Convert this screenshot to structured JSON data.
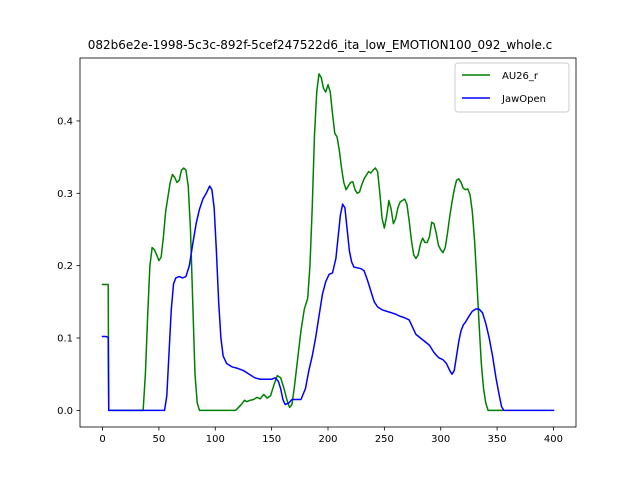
{
  "chart_data": {
    "type": "line",
    "title": "082b6e2e-1998-5c3c-892f-5cef247522d6_ita_low_EMOTION100_092_whole.c",
    "xlabel": "",
    "ylabel": "",
    "xlim": [
      -20,
      420
    ],
    "ylim": [
      -0.023,
      0.487
    ],
    "xticks": [
      0,
      50,
      100,
      150,
      200,
      250,
      300,
      350,
      400
    ],
    "yticks": [
      0.0,
      0.1,
      0.2,
      0.3,
      0.4
    ],
    "xtick_labels": [
      "0",
      "50",
      "100",
      "150",
      "200",
      "250",
      "300",
      "350",
      "400"
    ],
    "ytick_labels": [
      "0.0",
      "0.1",
      "0.2",
      "0.3",
      "0.4"
    ],
    "grid": false,
    "legend_position": "top-right",
    "series": [
      {
        "name": "AU26_r",
        "color": "#008000",
        "points": [
          [
            0,
            0.174
          ],
          [
            3,
            0.174
          ],
          [
            5,
            0.174
          ],
          [
            5.5,
            0.0
          ],
          [
            10,
            0.0
          ],
          [
            20,
            0.0
          ],
          [
            30,
            0.0
          ],
          [
            36,
            0.0
          ],
          [
            38,
            0.05
          ],
          [
            40,
            0.13
          ],
          [
            42,
            0.2
          ],
          [
            44,
            0.225
          ],
          [
            46,
            0.222
          ],
          [
            48,
            0.215
          ],
          [
            50,
            0.207
          ],
          [
            52,
            0.212
          ],
          [
            54,
            0.24
          ],
          [
            56,
            0.275
          ],
          [
            58,
            0.295
          ],
          [
            60,
            0.315
          ],
          [
            62,
            0.326
          ],
          [
            64,
            0.322
          ],
          [
            66,
            0.315
          ],
          [
            68,
            0.318
          ],
          [
            70,
            0.332
          ],
          [
            72,
            0.335
          ],
          [
            74,
            0.332
          ],
          [
            76,
            0.31
          ],
          [
            78,
            0.25
          ],
          [
            80,
            0.15
          ],
          [
            82,
            0.05
          ],
          [
            84,
            0.01
          ],
          [
            86,
            0.0
          ],
          [
            100,
            0.0
          ],
          [
            110,
            0.0
          ],
          [
            118,
            0.0
          ],
          [
            120,
            0.003
          ],
          [
            123,
            0.008
          ],
          [
            126,
            0.014
          ],
          [
            128,
            0.012
          ],
          [
            131,
            0.014
          ],
          [
            134,
            0.015
          ],
          [
            137,
            0.018
          ],
          [
            140,
            0.016
          ],
          [
            143,
            0.022
          ],
          [
            146,
            0.017
          ],
          [
            149,
            0.02
          ],
          [
            152,
            0.035
          ],
          [
            155,
            0.048
          ],
          [
            158,
            0.045
          ],
          [
            161,
            0.03
          ],
          [
            164,
            0.012
          ],
          [
            166,
            0.004
          ],
          [
            168,
            0.008
          ],
          [
            170,
            0.03
          ],
          [
            173,
            0.07
          ],
          [
            176,
            0.11
          ],
          [
            179,
            0.14
          ],
          [
            182,
            0.155
          ],
          [
            184,
            0.2
          ],
          [
            186,
            0.28
          ],
          [
            188,
            0.38
          ],
          [
            190,
            0.44
          ],
          [
            192,
            0.465
          ],
          [
            194,
            0.46
          ],
          [
            196,
            0.445
          ],
          [
            198,
            0.44
          ],
          [
            200,
            0.45
          ],
          [
            202,
            0.44
          ],
          [
            204,
            0.41
          ],
          [
            206,
            0.383
          ],
          [
            208,
            0.378
          ],
          [
            210,
            0.36
          ],
          [
            212,
            0.335
          ],
          [
            214,
            0.315
          ],
          [
            216,
            0.305
          ],
          [
            218,
            0.31
          ],
          [
            220,
            0.315
          ],
          [
            222,
            0.316
          ],
          [
            224,
            0.305
          ],
          [
            226,
            0.3
          ],
          [
            228,
            0.302
          ],
          [
            230,
            0.312
          ],
          [
            232,
            0.32
          ],
          [
            234,
            0.325
          ],
          [
            236,
            0.33
          ],
          [
            238,
            0.328
          ],
          [
            240,
            0.332
          ],
          [
            242,
            0.335
          ],
          [
            244,
            0.33
          ],
          [
            246,
            0.3
          ],
          [
            248,
            0.265
          ],
          [
            250,
            0.252
          ],
          [
            252,
            0.268
          ],
          [
            254,
            0.29
          ],
          [
            256,
            0.278
          ],
          [
            258,
            0.258
          ],
          [
            260,
            0.265
          ],
          [
            262,
            0.28
          ],
          [
            264,
            0.288
          ],
          [
            266,
            0.29
          ],
          [
            268,
            0.292
          ],
          [
            270,
            0.285
          ],
          [
            272,
            0.262
          ],
          [
            274,
            0.235
          ],
          [
            276,
            0.215
          ],
          [
            278,
            0.21
          ],
          [
            280,
            0.215
          ],
          [
            282,
            0.23
          ],
          [
            284,
            0.238
          ],
          [
            286,
            0.232
          ],
          [
            288,
            0.232
          ],
          [
            290,
            0.24
          ],
          [
            292,
            0.26
          ],
          [
            294,
            0.258
          ],
          [
            296,
            0.245
          ],
          [
            298,
            0.228
          ],
          [
            300,
            0.222
          ],
          [
            302,
            0.218
          ],
          [
            304,
            0.225
          ],
          [
            306,
            0.245
          ],
          [
            308,
            0.268
          ],
          [
            310,
            0.288
          ],
          [
            312,
            0.305
          ],
          [
            314,
            0.318
          ],
          [
            316,
            0.32
          ],
          [
            318,
            0.315
          ],
          [
            320,
            0.307
          ],
          [
            322,
            0.305
          ],
          [
            324,
            0.306
          ],
          [
            326,
            0.298
          ],
          [
            328,
            0.275
          ],
          [
            330,
            0.235
          ],
          [
            332,
            0.18
          ],
          [
            334,
            0.12
          ],
          [
            336,
            0.065
          ],
          [
            338,
            0.03
          ],
          [
            340,
            0.01
          ],
          [
            342,
            0.0
          ],
          [
            345,
            0.0
          ],
          [
            350,
            0.0
          ],
          [
            355,
            0.0
          ]
        ]
      },
      {
        "name": "JawOpen",
        "color": "#0000ff",
        "points": [
          [
            0,
            0.102
          ],
          [
            3,
            0.102
          ],
          [
            5,
            0.101
          ],
          [
            5.5,
            0.0
          ],
          [
            10,
            0.0
          ],
          [
            30,
            0.0
          ],
          [
            50,
            0.0
          ],
          [
            55,
            0.0
          ],
          [
            57,
            0.02
          ],
          [
            59,
            0.08
          ],
          [
            61,
            0.14
          ],
          [
            63,
            0.175
          ],
          [
            65,
            0.183
          ],
          [
            68,
            0.185
          ],
          [
            71,
            0.183
          ],
          [
            74,
            0.185
          ],
          [
            77,
            0.2
          ],
          [
            80,
            0.23
          ],
          [
            83,
            0.258
          ],
          [
            86,
            0.278
          ],
          [
            89,
            0.292
          ],
          [
            92,
            0.3
          ],
          [
            95,
            0.31
          ],
          [
            97,
            0.305
          ],
          [
            99,
            0.28
          ],
          [
            101,
            0.22
          ],
          [
            103,
            0.15
          ],
          [
            105,
            0.1
          ],
          [
            107,
            0.075
          ],
          [
            110,
            0.065
          ],
          [
            115,
            0.06
          ],
          [
            120,
            0.058
          ],
          [
            125,
            0.055
          ],
          [
            130,
            0.05
          ],
          [
            135,
            0.045
          ],
          [
            140,
            0.043
          ],
          [
            145,
            0.043
          ],
          [
            150,
            0.043
          ],
          [
            153,
            0.045
          ],
          [
            156,
            0.04
          ],
          [
            158,
            0.03
          ],
          [
            160,
            0.015
          ],
          [
            162,
            0.008
          ],
          [
            165,
            0.01
          ],
          [
            168,
            0.015
          ],
          [
            172,
            0.015
          ],
          [
            176,
            0.015
          ],
          [
            180,
            0.03
          ],
          [
            183,
            0.055
          ],
          [
            186,
            0.075
          ],
          [
            189,
            0.1
          ],
          [
            192,
            0.13
          ],
          [
            195,
            0.16
          ],
          [
            198,
            0.178
          ],
          [
            201,
            0.188
          ],
          [
            204,
            0.19
          ],
          [
            207,
            0.21
          ],
          [
            209,
            0.24
          ],
          [
            211,
            0.27
          ],
          [
            213,
            0.285
          ],
          [
            215,
            0.28
          ],
          [
            217,
            0.25
          ],
          [
            219,
            0.22
          ],
          [
            221,
            0.205
          ],
          [
            223,
            0.198
          ],
          [
            226,
            0.197
          ],
          [
            229,
            0.196
          ],
          [
            232,
            0.193
          ],
          [
            235,
            0.18
          ],
          [
            238,
            0.165
          ],
          [
            241,
            0.15
          ],
          [
            244,
            0.143
          ],
          [
            248,
            0.139
          ],
          [
            252,
            0.137
          ],
          [
            256,
            0.135
          ],
          [
            260,
            0.133
          ],
          [
            264,
            0.13
          ],
          [
            268,
            0.128
          ],
          [
            272,
            0.125
          ],
          [
            275,
            0.115
          ],
          [
            278,
            0.105
          ],
          [
            282,
            0.1
          ],
          [
            286,
            0.095
          ],
          [
            290,
            0.09
          ],
          [
            294,
            0.08
          ],
          [
            298,
            0.073
          ],
          [
            302,
            0.07
          ],
          [
            305,
            0.065
          ],
          [
            308,
            0.055
          ],
          [
            310,
            0.05
          ],
          [
            312,
            0.055
          ],
          [
            314,
            0.075
          ],
          [
            316,
            0.095
          ],
          [
            318,
            0.11
          ],
          [
            320,
            0.118
          ],
          [
            322,
            0.122
          ],
          [
            325,
            0.13
          ],
          [
            328,
            0.137
          ],
          [
            331,
            0.14
          ],
          [
            334,
            0.14
          ],
          [
            337,
            0.135
          ],
          [
            340,
            0.12
          ],
          [
            343,
            0.1
          ],
          [
            346,
            0.075
          ],
          [
            349,
            0.045
          ],
          [
            352,
            0.02
          ],
          [
            354,
            0.005
          ],
          [
            356,
            0.0
          ],
          [
            360,
            0.0
          ],
          [
            365,
            0.0
          ],
          [
            400,
            0.0
          ]
        ]
      }
    ]
  },
  "colors": {
    "au26_r": "#008000",
    "jawopen": "#0000ff",
    "axes": "#000000",
    "legend_border": "#cccccc"
  }
}
